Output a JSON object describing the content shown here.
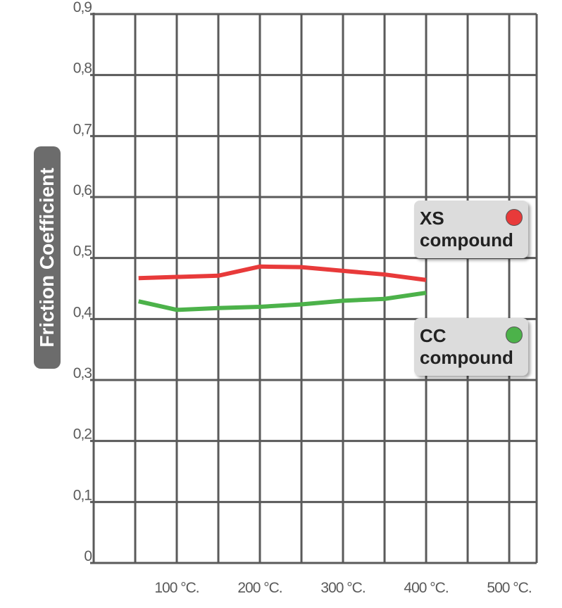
{
  "chart_data": {
    "type": "line",
    "ylabel": "Friction Coefficient",
    "xlim": [
      0,
      533
    ],
    "ylim": [
      0,
      0.9
    ],
    "xticks": [
      {
        "value": 100,
        "label": "100 °C."
      },
      {
        "value": 200,
        "label": "200 °C."
      },
      {
        "value": 300,
        "label": "300 °C."
      },
      {
        "value": 400,
        "label": "400 °C."
      },
      {
        "value": 500,
        "label": "500 °C."
      }
    ],
    "xgrid": [
      0,
      50,
      100,
      150,
      200,
      250,
      300,
      350,
      400,
      450,
      500
    ],
    "yticks": [
      0,
      {
        "value": 0.1,
        "label": "0,1"
      },
      {
        "value": 0.2,
        "label": "0,2"
      },
      {
        "value": 0.3,
        "label": "0,3"
      },
      {
        "value": 0.4,
        "label": "0,4"
      },
      {
        "value": 0.5,
        "label": "0,5"
      },
      {
        "value": 0.6,
        "label": "0,6"
      },
      {
        "value": 0.7,
        "label": "0,7"
      },
      {
        "value": 0.8,
        "label": "0,8"
      },
      {
        "value": 0.9,
        "label": "0,9"
      }
    ],
    "grid": true,
    "x": [
      54,
      100,
      150,
      200,
      250,
      300,
      350,
      400
    ],
    "series": [
      {
        "name": "XS compound",
        "color": "#e83a3a",
        "values": [
          0.467,
          0.469,
          0.471,
          0.486,
          0.485,
          0.479,
          0.473,
          0.464
        ]
      },
      {
        "name": "CC compound",
        "color": "#4cb24a",
        "values": [
          0.429,
          0.415,
          0.418,
          0.42,
          0.424,
          0.43,
          0.433,
          0.443
        ]
      }
    ]
  }
}
